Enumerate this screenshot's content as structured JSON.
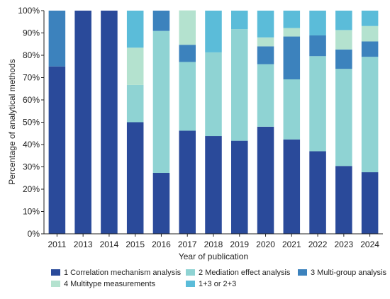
{
  "chart_data": {
    "type": "bar",
    "stacked": true,
    "title": "",
    "xlabel": "Year of publication",
    "ylabel": "Percentage of analytical methods",
    "ylim": [
      0,
      100
    ],
    "y_ticks": [
      "0%",
      "10%",
      "20%",
      "30%",
      "40%",
      "50%",
      "60%",
      "70%",
      "80%",
      "90%",
      "100%"
    ],
    "grid": false,
    "legend_position": "bottom",
    "categories": [
      "2011",
      "2013",
      "2014",
      "2015",
      "2016",
      "2017",
      "2018",
      "2019",
      "2020",
      "2021",
      "2022",
      "2023",
      "2024"
    ],
    "series": [
      {
        "name": "1 Correlation mechanism analysis",
        "color": "#2a4a9a",
        "values": [
          75,
          100,
          100,
          50,
          27.3,
          46.2,
          43.8,
          41.7,
          48,
          42.3,
          37,
          30.4,
          27.6
        ]
      },
      {
        "name": "2 Mediation effect analysis",
        "color": "#8fd3d3",
        "values": [
          0,
          0,
          0,
          16.7,
          63.6,
          30.8,
          37.5,
          50,
          28,
          26.9,
          42.6,
          43.5,
          51.7
        ]
      },
      {
        "name": "3 Multi-group analysis",
        "color": "#3c82bd",
        "values": [
          25,
          0,
          0,
          0,
          9.1,
          7.7,
          0,
          0,
          8,
          19.2,
          9.3,
          8.7,
          6.9
        ]
      },
      {
        "name": "4 Multitype measurements",
        "color": "#b4e2cf",
        "values": [
          0,
          0,
          0,
          16.7,
          0,
          15.4,
          0,
          0,
          4,
          3.8,
          0,
          8.7,
          6.9
        ]
      },
      {
        "name": "1+3 or 2+3",
        "color": "#5bbcd9",
        "values": [
          0,
          0,
          0,
          16.6,
          0,
          0,
          18.7,
          8.3,
          12,
          7.8,
          11.1,
          8.7,
          6.9
        ]
      }
    ]
  }
}
